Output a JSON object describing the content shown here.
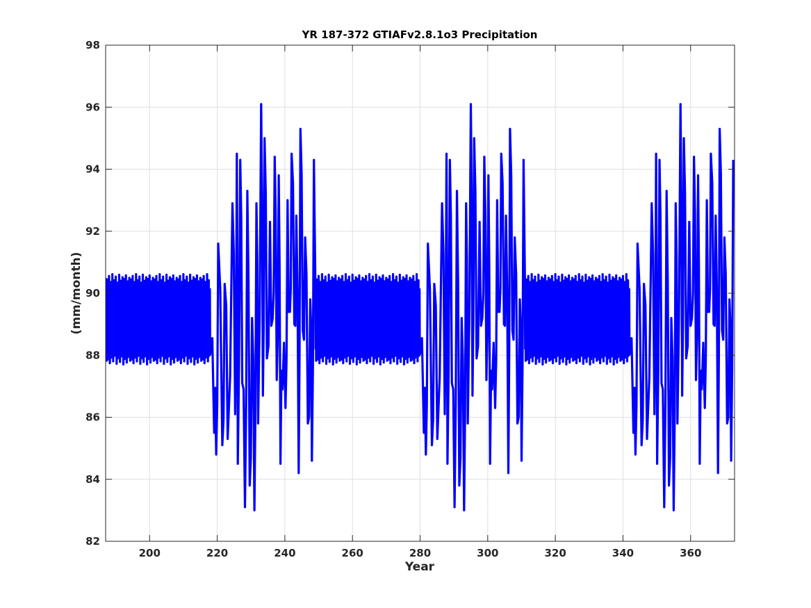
{
  "chart_data": {
    "type": "line",
    "title": "YR 187-372 GTIAFv2.8.1o3 Precipitation",
    "xlabel": "Year",
    "ylabel": "(mm/month)",
    "xlim": [
      187,
      373
    ],
    "ylim": [
      82,
      98
    ],
    "xticks": [
      200,
      220,
      240,
      260,
      280,
      300,
      320,
      340,
      360
    ],
    "yticks": [
      82,
      84,
      86,
      88,
      90,
      92,
      94,
      96,
      98
    ],
    "grid": true,
    "series": [
      {
        "color": "#0000ff",
        "description_note": "monthly series; two regimes alternating with a ~62-year period",
        "regimes": [
          {
            "from": 187,
            "to": 218,
            "kind": "regular",
            "high": 90.65,
            "low": 87.55
          },
          {
            "from": 218,
            "to": 249,
            "kind": "irregular"
          },
          {
            "from": 249,
            "to": 280,
            "kind": "regular",
            "high": 90.65,
            "low": 87.55
          },
          {
            "from": 280,
            "to": 311,
            "kind": "irregular"
          },
          {
            "from": 311,
            "to": 342,
            "kind": "regular",
            "high": 90.65,
            "low": 87.55
          },
          {
            "from": 342,
            "to": 373,
            "kind": "irregular"
          }
        ],
        "irregular_extremes": [
          {
            "x": 219.1,
            "y": 85.5
          },
          {
            "x": 219.7,
            "y": 84.8
          },
          {
            "x": 220.3,
            "y": 91.6
          },
          {
            "x": 221.5,
            "y": 85.1
          },
          {
            "x": 222.2,
            "y": 90.3
          },
          {
            "x": 223.1,
            "y": 85.3
          },
          {
            "x": 224.5,
            "y": 92.9
          },
          {
            "x": 225.3,
            "y": 86.1
          },
          {
            "x": 225.8,
            "y": 94.5
          },
          {
            "x": 226.1,
            "y": 84.5
          },
          {
            "x": 226.8,
            "y": 94.3
          },
          {
            "x": 227.4,
            "y": 87.1
          },
          {
            "x": 228.2,
            "y": 83.1
          },
          {
            "x": 228.9,
            "y": 93.3
          },
          {
            "x": 229.6,
            "y": 83.8
          },
          {
            "x": 230.3,
            "y": 89.2
          },
          {
            "x": 231.0,
            "y": 83.0
          },
          {
            "x": 231.6,
            "y": 92.9
          },
          {
            "x": 232.1,
            "y": 85.8
          },
          {
            "x": 233.0,
            "y": 96.1
          },
          {
            "x": 233.5,
            "y": 86.7
          },
          {
            "x": 234.0,
            "y": 95.0
          },
          {
            "x": 234.7,
            "y": 87.9
          },
          {
            "x": 235.6,
            "y": 92.3
          },
          {
            "x": 236.4,
            "y": 89.2
          },
          {
            "x": 237.0,
            "y": 94.4
          },
          {
            "x": 237.6,
            "y": 87.2
          },
          {
            "x": 238.2,
            "y": 93.8
          },
          {
            "x": 238.7,
            "y": 84.5
          },
          {
            "x": 239.3,
            "y": 86.9
          },
          {
            "x": 240.2,
            "y": 86.3
          },
          {
            "x": 240.8,
            "y": 93.0
          },
          {
            "x": 241.5,
            "y": 89.4
          },
          {
            "x": 242.0,
            "y": 94.5
          },
          {
            "x": 242.8,
            "y": 89.0
          },
          {
            "x": 243.4,
            "y": 92.5
          },
          {
            "x": 244.1,
            "y": 84.2
          },
          {
            "x": 244.6,
            "y": 95.3
          },
          {
            "x": 245.3,
            "y": 88.8
          },
          {
            "x": 246.0,
            "y": 91.8
          },
          {
            "x": 246.8,
            "y": 85.8
          },
          {
            "x": 247.5,
            "y": 89.8
          },
          {
            "x": 248.0,
            "y": 84.6
          },
          {
            "x": 248.6,
            "y": 94.3
          }
        ],
        "irregular_period": 62
      }
    ]
  }
}
